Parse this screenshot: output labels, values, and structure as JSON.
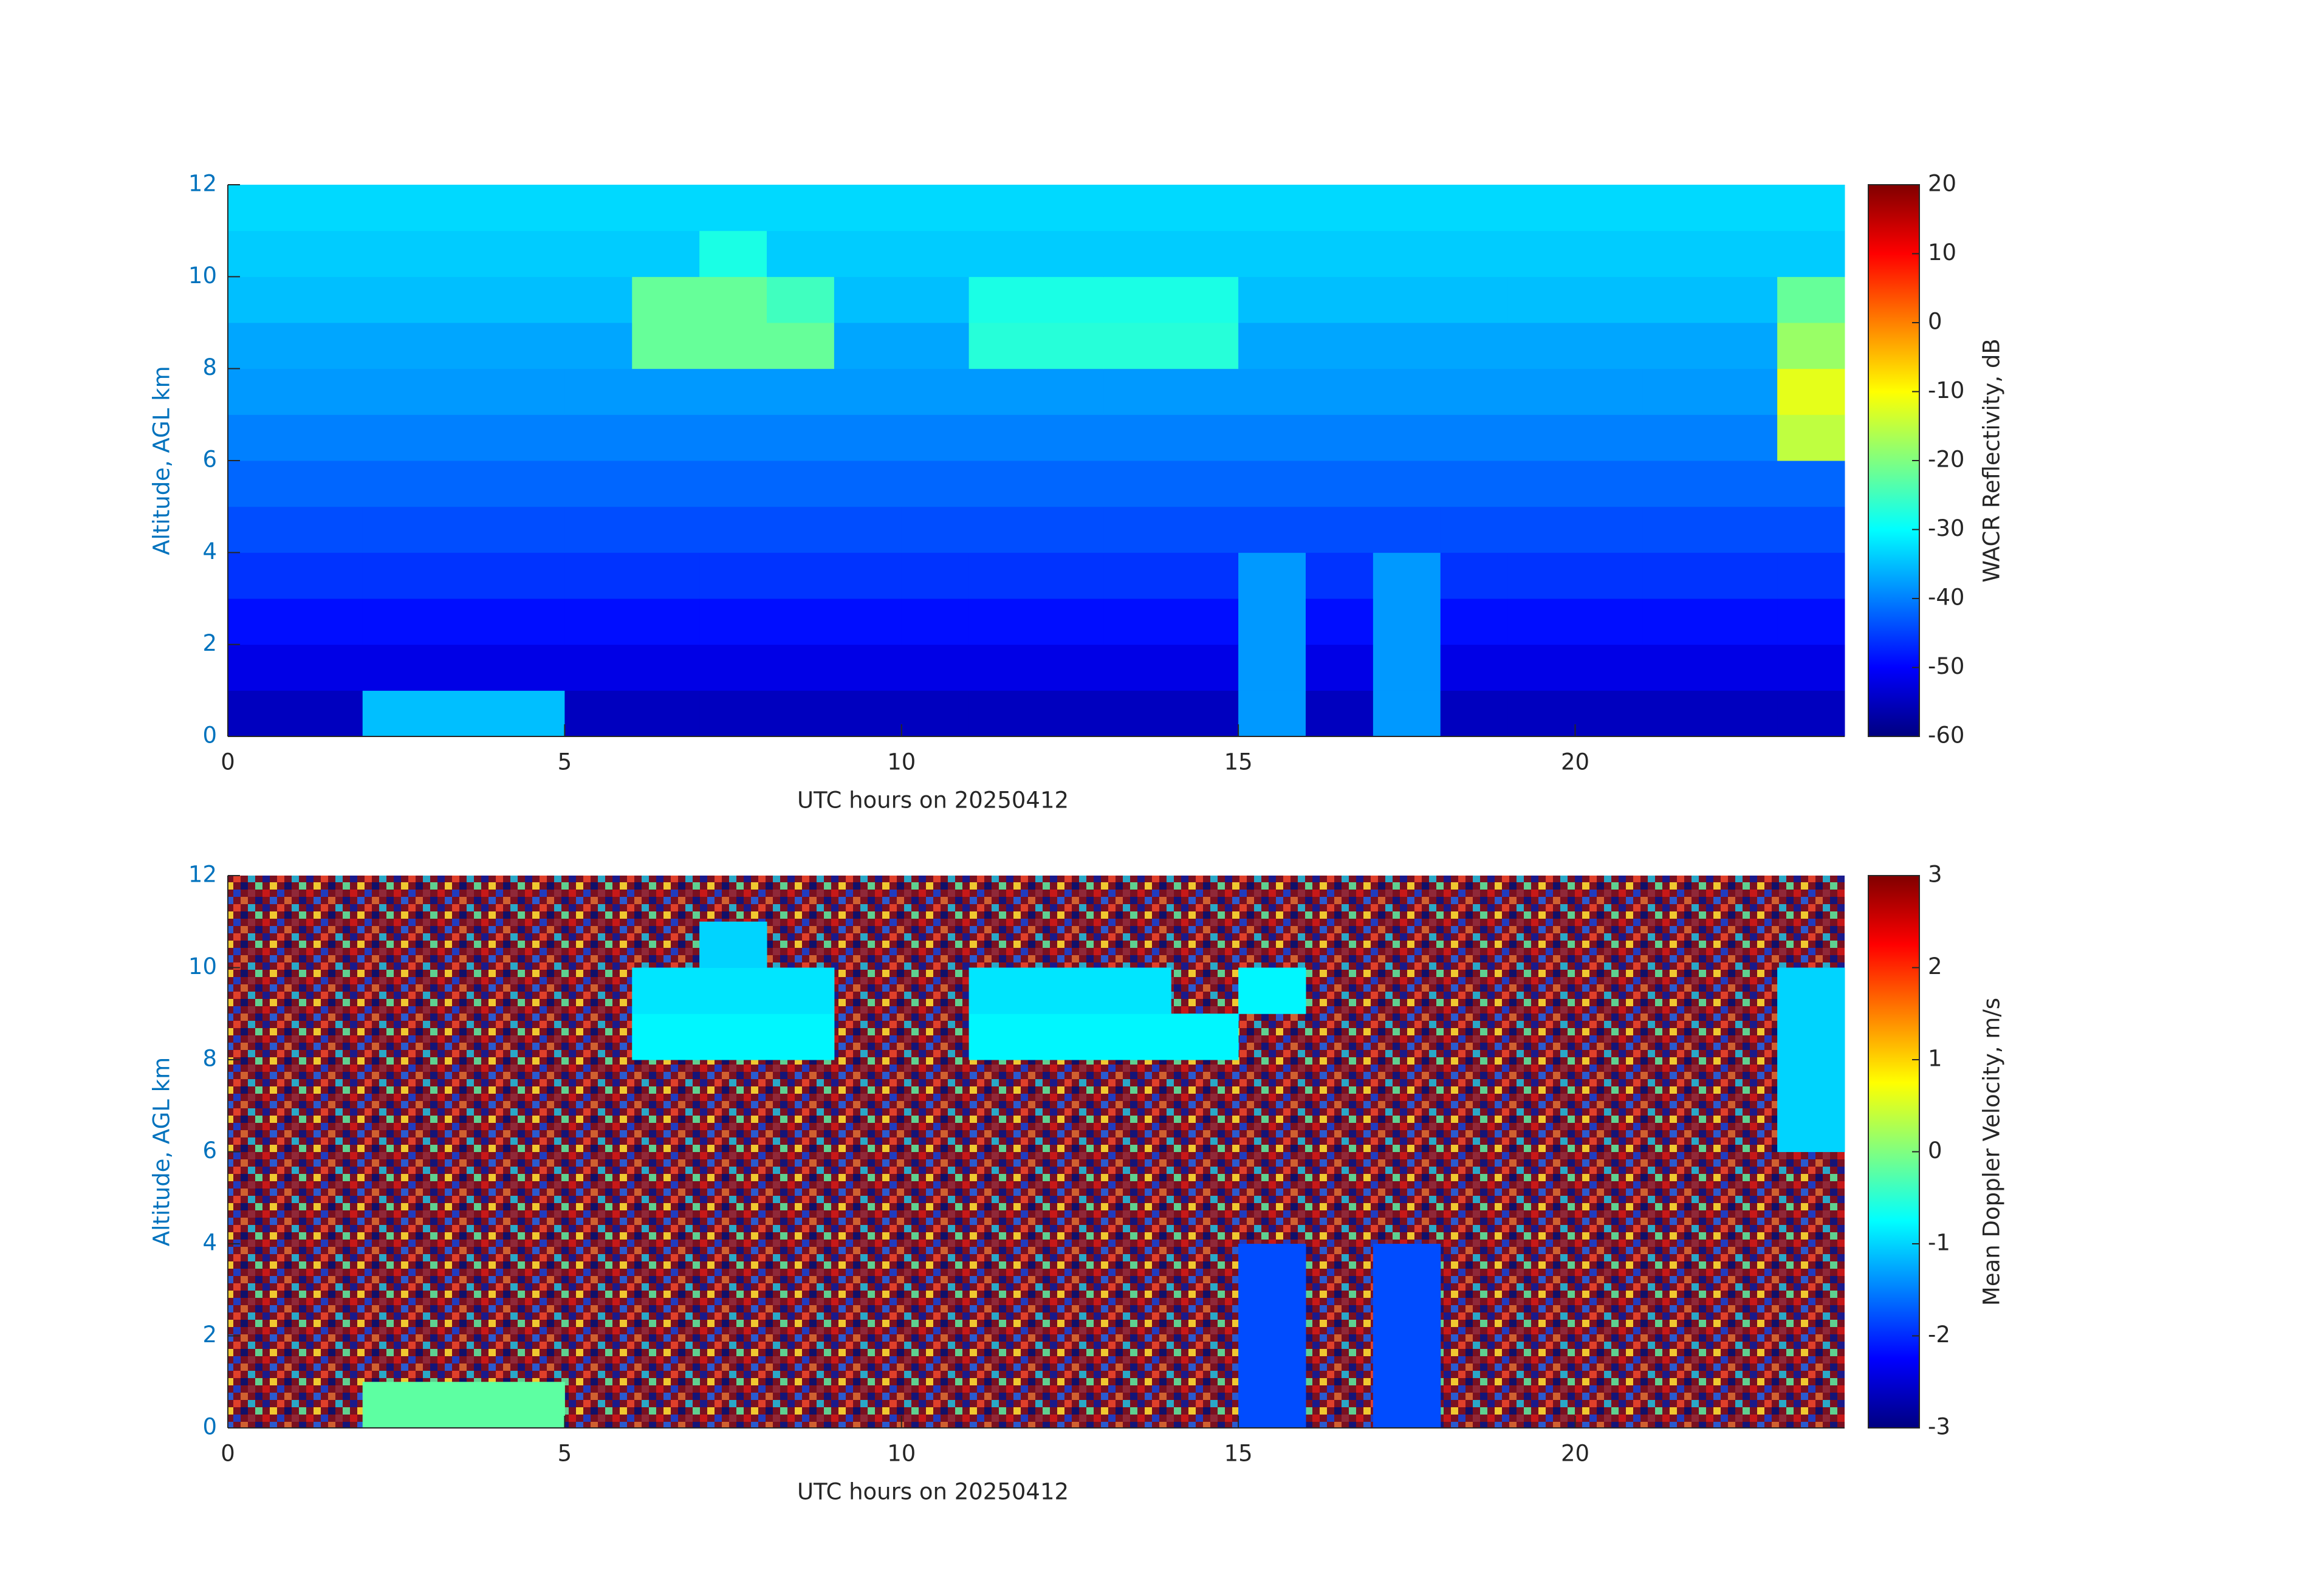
{
  "chart_data": [
    {
      "type": "heatmap",
      "colormap": "jet",
      "xlabel": "UTC hours on 20250412",
      "ylabel": "Altitude, AGL km",
      "colorbar_label": "WACR Reflectivity, dB",
      "x": [
        0,
        1,
        2,
        3,
        4,
        5,
        6,
        7,
        8,
        9,
        10,
        11,
        12,
        13,
        14,
        15,
        16,
        17,
        18,
        19,
        20,
        21,
        22,
        23,
        24
      ],
      "y": [
        0,
        1,
        2,
        3,
        4,
        5,
        6,
        7,
        8,
        9,
        10,
        11,
        12
      ],
      "xlim": [
        0,
        24
      ],
      "xticks": [
        0,
        5,
        10,
        15,
        20
      ],
      "ylim": [
        0,
        12
      ],
      "yticks": [
        0,
        2,
        4,
        6,
        8,
        10,
        12
      ],
      "clim": [
        -60,
        20
      ],
      "cticks": [
        -60,
        -50,
        -40,
        -30,
        -20,
        -10,
        0,
        10,
        20
      ],
      "z": [
        [
          -55,
          -55,
          -35,
          -35,
          -35,
          -55,
          -55,
          -55,
          -55,
          -55,
          -55,
          -55,
          -55,
          -55,
          -55,
          -38,
          -55,
          -38,
          -55,
          -55,
          -55,
          -55,
          -55,
          -55
        ],
        [
          -52,
          -52,
          -52,
          -52,
          -52,
          -52,
          -52,
          -52,
          -52,
          -52,
          -52,
          -52,
          -52,
          -52,
          -52,
          -38,
          -52,
          -38,
          -52,
          -52,
          -52,
          -52,
          -52,
          -52
        ],
        [
          -49,
          -49,
          -49,
          -49,
          -49,
          -49,
          -49,
          -49,
          -49,
          -49,
          -49,
          -49,
          -49,
          -49,
          -49,
          -38,
          -49,
          -38,
          -49,
          -49,
          -49,
          -49,
          -49,
          -49
        ],
        [
          -46,
          -46,
          -46,
          -46,
          -46,
          -46,
          -46,
          -46,
          -46,
          -46,
          -46,
          -46,
          -46,
          -46,
          -46,
          -38,
          -46,
          -38,
          -46,
          -46,
          -46,
          -46,
          -46,
          -46
        ],
        [
          -44,
          -44,
          -44,
          -44,
          -44,
          -44,
          -44,
          -44,
          -44,
          -44,
          -44,
          -44,
          -44,
          -44,
          -44,
          -44,
          -44,
          -44,
          -44,
          -44,
          -44,
          -44,
          -44,
          -44
        ],
        [
          -42,
          -42,
          -42,
          -42,
          -42,
          -42,
          -42,
          -42,
          -42,
          -42,
          -42,
          -42,
          -42,
          -42,
          -42,
          -42,
          -42,
          -42,
          -42,
          -42,
          -42,
          -42,
          -42,
          -42
        ],
        [
          -40,
          -40,
          -40,
          -40,
          -40,
          -40,
          -40,
          -40,
          -40,
          -40,
          -40,
          -40,
          -40,
          -40,
          -40,
          -40,
          -40,
          -40,
          -40,
          -40,
          -40,
          -40,
          -40,
          -15
        ],
        [
          -38,
          -38,
          -38,
          -38,
          -38,
          -38,
          -38,
          -38,
          -38,
          -38,
          -38,
          -38,
          -38,
          -38,
          -38,
          -38,
          -38,
          -38,
          -38,
          -38,
          -38,
          -38,
          -38,
          -12
        ],
        [
          -37,
          -37,
          -37,
          -37,
          -37,
          -37,
          -22,
          -22,
          -22,
          -37,
          -37,
          -27,
          -27,
          -27,
          -27,
          -37,
          -37,
          -37,
          -37,
          -37,
          -37,
          -37,
          -37,
          -18
        ],
        [
          -35,
          -35,
          -35,
          -35,
          -35,
          -35,
          -22,
          -22,
          -25,
          -35,
          -35,
          -28,
          -28,
          -28,
          -28,
          -35,
          -35,
          -35,
          -35,
          -35,
          -35,
          -35,
          -35,
          -22
        ],
        [
          -34,
          -34,
          -34,
          -34,
          -34,
          -34,
          -34,
          -28,
          -34,
          -34,
          -34,
          -34,
          -34,
          -34,
          -34,
          -34,
          -34,
          -34,
          -34,
          -34,
          -34,
          -34,
          -34,
          -34
        ],
        [
          -33,
          -33,
          -33,
          -33,
          -33,
          -33,
          -33,
          -33,
          -33,
          -33,
          -33,
          -33,
          -33,
          -33,
          -33,
          -33,
          -33,
          -33,
          -33,
          -33,
          -33,
          -33,
          -33,
          -33
        ]
      ]
    },
    {
      "type": "heatmap",
      "colormap": "jet",
      "xlabel": "UTC hours on 20250412",
      "ylabel": "Altitude, AGL km",
      "colorbar_label": "Mean Doppler Velocity, m/s",
      "x": [
        0,
        1,
        2,
        3,
        4,
        5,
        6,
        7,
        8,
        9,
        10,
        11,
        12,
        13,
        14,
        15,
        16,
        17,
        18,
        19,
        20,
        21,
        22,
        23,
        24
      ],
      "y": [
        0,
        1,
        2,
        3,
        4,
        5,
        6,
        7,
        8,
        9,
        10,
        11,
        12
      ],
      "xlim": [
        0,
        24
      ],
      "xticks": [
        0,
        5,
        10,
        15,
        20
      ],
      "ylim": [
        0,
        12
      ],
      "yticks": [
        0,
        2,
        4,
        6,
        8,
        10,
        12
      ],
      "clim": [
        -3,
        3
      ],
      "cticks": [
        -3,
        -2,
        -1,
        0,
        1,
        2,
        3
      ],
      "z": [
        [
          null,
          null,
          -0.2,
          -0.2,
          -0.2,
          null,
          null,
          null,
          null,
          null,
          null,
          null,
          null,
          null,
          null,
          -1.8,
          null,
          -1.8,
          null,
          null,
          null,
          null,
          null,
          null
        ],
        [
          null,
          null,
          null,
          null,
          null,
          null,
          null,
          null,
          null,
          null,
          null,
          null,
          null,
          null,
          null,
          -1.8,
          null,
          -1.8,
          null,
          null,
          null,
          null,
          null,
          null
        ],
        [
          null,
          null,
          null,
          null,
          null,
          null,
          null,
          null,
          null,
          null,
          null,
          null,
          null,
          null,
          null,
          -1.8,
          null,
          -1.8,
          null,
          null,
          null,
          null,
          null,
          null
        ],
        [
          null,
          null,
          null,
          null,
          null,
          null,
          null,
          null,
          null,
          null,
          null,
          null,
          null,
          null,
          null,
          -1.8,
          null,
          -1.8,
          null,
          null,
          null,
          null,
          null,
          null
        ],
        [
          null,
          null,
          null,
          null,
          null,
          null,
          null,
          null,
          null,
          null,
          null,
          null,
          null,
          null,
          null,
          null,
          null,
          null,
          null,
          null,
          null,
          null,
          null,
          null
        ],
        [
          null,
          null,
          null,
          null,
          null,
          null,
          null,
          null,
          null,
          null,
          null,
          null,
          null,
          null,
          null,
          null,
          null,
          null,
          null,
          null,
          null,
          null,
          null,
          null
        ],
        [
          null,
          null,
          null,
          null,
          null,
          null,
          null,
          null,
          null,
          null,
          null,
          null,
          null,
          null,
          null,
          null,
          null,
          null,
          null,
          null,
          null,
          null,
          null,
          -1
        ],
        [
          null,
          null,
          null,
          null,
          null,
          null,
          null,
          null,
          null,
          null,
          null,
          null,
          null,
          null,
          null,
          null,
          null,
          null,
          null,
          null,
          null,
          null,
          null,
          -1
        ],
        [
          null,
          null,
          null,
          null,
          null,
          null,
          -0.8,
          -0.8,
          -0.8,
          null,
          null,
          -0.8,
          -0.8,
          -0.8,
          -0.8,
          null,
          null,
          null,
          null,
          null,
          null,
          null,
          null,
          -1
        ],
        [
          null,
          null,
          null,
          null,
          null,
          null,
          -0.9,
          -0.9,
          -0.9,
          null,
          null,
          -0.9,
          -0.9,
          -0.9,
          null,
          -0.8,
          null,
          null,
          null,
          null,
          null,
          null,
          null,
          -1
        ],
        [
          null,
          null,
          null,
          null,
          null,
          null,
          null,
          -1,
          null,
          null,
          null,
          null,
          null,
          null,
          null,
          null,
          null,
          null,
          null,
          null,
          null,
          null,
          null,
          null
        ],
        [
          null,
          null,
          null,
          null,
          null,
          null,
          null,
          null,
          null,
          null,
          null,
          null,
          null,
          null,
          null,
          null,
          null,
          null,
          null,
          null,
          null,
          null,
          null,
          null
        ]
      ]
    }
  ]
}
